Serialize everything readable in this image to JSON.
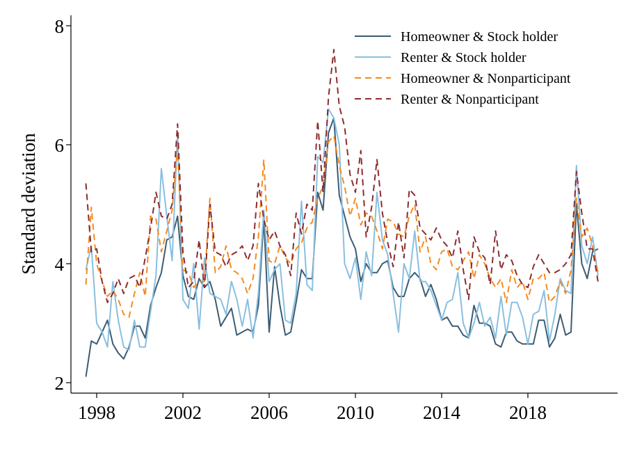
{
  "chart_data": {
    "type": "line",
    "title": "",
    "xlabel": "",
    "ylabel": "Standard deviation",
    "xlim": [
      1997.0,
      2022.5
    ],
    "ylim": [
      1.8,
      8.2
    ],
    "xticks": [
      1998,
      2002,
      2006,
      2010,
      2014,
      2018
    ],
    "xtick_labels": [
      "1998",
      "2002",
      "2006",
      "2010",
      "2014",
      "2018"
    ],
    "yticks": [
      2,
      4,
      6,
      8
    ],
    "ytick_labels": [
      "2",
      "4",
      "6",
      "8"
    ],
    "legend_position": "top-right",
    "x_start": 1997.5,
    "x_step": 0.25,
    "series": [
      {
        "name": "Homeowner & Stock holder",
        "color": "#3b5c74",
        "dash": "solid",
        "values": [
          2.1,
          2.7,
          2.65,
          2.85,
          3.05,
          2.65,
          2.5,
          2.4,
          2.6,
          2.95,
          2.95,
          2.75,
          3.3,
          3.6,
          3.85,
          4.4,
          4.45,
          4.8,
          3.8,
          3.45,
          3.4,
          3.75,
          3.6,
          3.7,
          3.4,
          2.95,
          3.1,
          3.25,
          2.8,
          2.85,
          2.9,
          2.85,
          3.3,
          4.75,
          2.85,
          3.95,
          3.3,
          2.8,
          2.85,
          3.35,
          3.9,
          3.75,
          3.75,
          5.2,
          4.9,
          6.2,
          6.45,
          5.15,
          4.8,
          4.45,
          4.25,
          3.7,
          4.0,
          3.85,
          3.85,
          4.0,
          4.05,
          3.6,
          3.45,
          3.45,
          3.75,
          3.85,
          3.75,
          3.45,
          3.65,
          3.4,
          3.05,
          3.1,
          2.95,
          2.95,
          2.8,
          2.75,
          3.3,
          3.0,
          3.0,
          2.95,
          2.65,
          2.6,
          2.85,
          2.85,
          2.7,
          2.65,
          2.65,
          2.65,
          3.05,
          3.05,
          2.6,
          2.75,
          3.15,
          2.8,
          2.85,
          5.0,
          4.0,
          3.75,
          4.2,
          4.25
        ]
      },
      {
        "name": "Renter & Stock holder",
        "color": "#89bfe0",
        "dash": "solid",
        "values": [
          3.9,
          4.3,
          3.0,
          2.85,
          2.6,
          3.7,
          3.05,
          2.6,
          2.55,
          3.05,
          2.6,
          2.6,
          3.2,
          3.8,
          5.6,
          4.8,
          4.05,
          6.2,
          3.4,
          3.25,
          4.0,
          2.9,
          4.1,
          3.5,
          3.45,
          3.4,
          3.15,
          3.7,
          3.4,
          2.95,
          3.4,
          2.75,
          3.5,
          4.9,
          3.7,
          3.9,
          4.0,
          3.05,
          3.0,
          3.5,
          5.05,
          3.65,
          3.55,
          5.8,
          5.7,
          6.6,
          6.45,
          6.0,
          4.0,
          3.75,
          4.1,
          3.4,
          4.2,
          3.8,
          5.2,
          4.4,
          4.15,
          3.5,
          2.85,
          4.0,
          3.75,
          4.55,
          3.7,
          3.7,
          3.55,
          3.3,
          3.05,
          3.35,
          3.4,
          3.85,
          3.0,
          2.75,
          3.0,
          3.35,
          2.95,
          3.1,
          2.75,
          3.45,
          2.8,
          3.35,
          3.35,
          3.1,
          2.65,
          3.15,
          3.2,
          3.55,
          2.7,
          3.15,
          3.75,
          3.55,
          3.5,
          5.65,
          4.3,
          4.0,
          4.45,
          3.8
        ]
      },
      {
        "name": "Homeowner & Nonparticipant",
        "color": "#f58a1f",
        "dash": "dashed",
        "values": [
          3.65,
          4.95,
          4.0,
          3.7,
          3.45,
          3.55,
          3.4,
          3.15,
          3.1,
          3.5,
          3.85,
          3.45,
          4.8,
          4.75,
          4.2,
          4.55,
          4.9,
          5.95,
          3.9,
          3.85,
          3.6,
          3.7,
          3.7,
          5.1,
          3.85,
          3.95,
          4.3,
          3.9,
          3.85,
          3.75,
          3.5,
          3.75,
          4.45,
          5.75,
          4.05,
          4.0,
          4.3,
          4.1,
          4.0,
          4.25,
          4.35,
          4.6,
          4.7,
          5.1,
          5.3,
          6.05,
          6.15,
          5.65,
          5.3,
          4.8,
          5.1,
          4.65,
          4.85,
          4.8,
          4.55,
          4.25,
          4.75,
          4.7,
          4.5,
          4.45,
          4.8,
          5.0,
          4.2,
          4.45,
          4.0,
          3.9,
          4.2,
          4.25,
          3.95,
          3.9,
          4.05,
          4.2,
          3.75,
          4.15,
          4.0,
          3.75,
          3.6,
          3.75,
          3.35,
          3.9,
          3.6,
          3.7,
          3.4,
          3.75,
          3.75,
          3.85,
          3.35,
          3.45,
          3.7,
          3.5,
          3.9,
          5.1,
          4.45,
          4.6,
          4.3,
          3.85
        ]
      },
      {
        "name": "Renter & Nonparticipant",
        "color": "#8b2c2e",
        "dash": "dashed",
        "values": [
          5.35,
          4.2,
          4.25,
          3.7,
          3.35,
          3.5,
          3.75,
          3.5,
          3.75,
          3.8,
          3.6,
          4.1,
          4.6,
          5.2,
          4.8,
          4.75,
          5.0,
          6.35,
          4.2,
          3.6,
          3.7,
          4.4,
          3.6,
          5.0,
          4.2,
          4.15,
          3.95,
          4.15,
          4.2,
          4.3,
          4.05,
          4.3,
          5.35,
          4.75,
          4.4,
          4.55,
          4.3,
          4.15,
          3.8,
          4.85,
          4.5,
          5.0,
          4.9,
          6.4,
          5.2,
          6.8,
          7.6,
          6.65,
          6.3,
          5.5,
          5.2,
          5.9,
          4.45,
          4.95,
          5.75,
          4.85,
          4.35,
          3.95,
          4.7,
          4.1,
          5.25,
          5.15,
          4.6,
          4.5,
          4.4,
          4.6,
          4.4,
          4.3,
          4.1,
          4.55,
          3.9,
          3.4,
          4.45,
          4.2,
          4.1,
          3.65,
          4.55,
          3.9,
          4.15,
          4.05,
          3.8,
          3.65,
          3.6,
          3.95,
          4.15,
          4.0,
          3.85,
          3.85,
          3.9,
          4.0,
          4.15,
          5.55,
          4.85,
          4.25,
          4.25,
          3.7
        ]
      }
    ]
  }
}
